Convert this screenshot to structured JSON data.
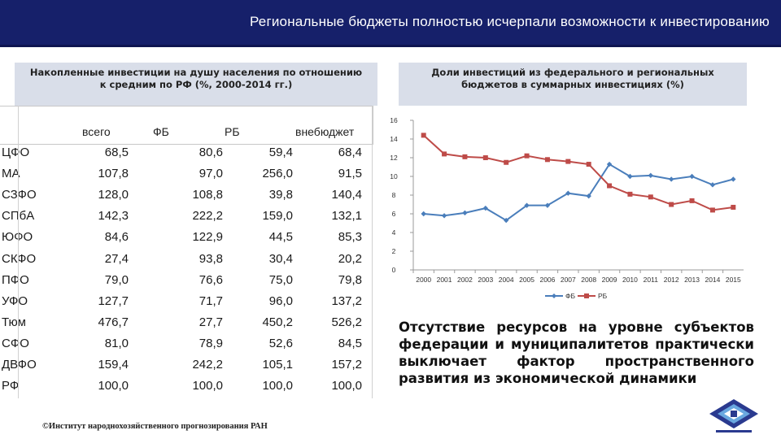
{
  "header": {
    "title": "Региональные бюджеты полностью исчерпали возможности к инвестированию"
  },
  "left_caption": {
    "line1": "Накопленные инвестиции на душу населения по отношению",
    "line2": "к средним по РФ (%, 2000-2014 гг.)"
  },
  "right_caption": {
    "line1": "Доли инвестиций из федерального и региональных",
    "line2": "бюджетов в суммарных инвестициях (%)"
  },
  "table": {
    "columns": [
      "всего",
      "ФБ",
      "РБ",
      "внебюджет"
    ],
    "rows": [
      {
        "name": "ЦФО",
        "values": [
          "68,5",
          "80,6",
          "59,4",
          "68,4"
        ]
      },
      {
        "name": "МА",
        "values": [
          "107,8",
          "97,0",
          "256,0",
          "91,5"
        ]
      },
      {
        "name": "СЗФО",
        "values": [
          "128,0",
          "108,8",
          "39,8",
          "140,4"
        ]
      },
      {
        "name": "СПбА",
        "values": [
          "142,3",
          "222,2",
          "159,0",
          "132,1"
        ]
      },
      {
        "name": "ЮФО",
        "values": [
          "84,6",
          "122,9",
          "44,5",
          "85,3"
        ]
      },
      {
        "name": "СКФО",
        "values": [
          "27,4",
          "93,8",
          "30,4",
          "20,2"
        ]
      },
      {
        "name": "ПФО",
        "values": [
          "79,0",
          "76,6",
          "75,0",
          "79,8"
        ]
      },
      {
        "name": "УФО",
        "values": [
          "127,7",
          "71,7",
          "96,0",
          "137,2"
        ]
      },
      {
        "name": "Тюм",
        "values": [
          "476,7",
          "27,7",
          "450,2",
          "526,2"
        ]
      },
      {
        "name": "СФО",
        "values": [
          "81,0",
          "78,9",
          "52,6",
          "84,5"
        ]
      },
      {
        "name": "ДВФО",
        "values": [
          "159,4",
          "242,2",
          "105,1",
          "157,2"
        ]
      },
      {
        "name": "РФ",
        "values": [
          "100,0",
          "100,0",
          "100,0",
          "100,0"
        ]
      }
    ]
  },
  "chart_data": {
    "type": "line",
    "title": "Доли инвестиций из федерального и региональных бюджетов в суммарных инвестициях (%)",
    "categories": [
      "2000",
      "2001",
      "2002",
      "2003",
      "2004",
      "2005",
      "2006",
      "2007",
      "2008",
      "2009",
      "2010",
      "2011",
      "2012",
      "2013",
      "2014",
      "2015"
    ],
    "ylim": [
      0,
      16
    ],
    "yticks": [
      0,
      2,
      4,
      6,
      8,
      10,
      12,
      14,
      16
    ],
    "grid": false,
    "legend": "bottom",
    "series": [
      {
        "name": "ФБ",
        "color": "#4a7ebb",
        "marker": "diamond",
        "values": [
          6.0,
          5.8,
          6.1,
          6.6,
          5.3,
          6.9,
          6.9,
          8.2,
          7.9,
          11.3,
          10.0,
          10.1,
          9.7,
          10.0,
          9.1,
          9.7
        ]
      },
      {
        "name": "РБ",
        "color": "#be4b48",
        "marker": "square",
        "values": [
          14.4,
          12.4,
          12.1,
          12.0,
          11.5,
          12.2,
          11.8,
          11.6,
          11.3,
          9.0,
          8.1,
          7.8,
          7.0,
          7.4,
          6.4,
          6.7
        ]
      }
    ]
  },
  "summary": {
    "text": "Отсутствие ресурсов на уровне субъектов федерации и муниципалитетов практически выключает фактор пространственного развития из экономической динамики"
  },
  "footer": {
    "text": "©Институт народнохозяйственного прогнозирования РАН"
  },
  "colors": {
    "header_bg": "#16206a",
    "caption_bg": "#d9dee9",
    "fb_line": "#4a7ebb",
    "rb_line": "#be4b48"
  }
}
